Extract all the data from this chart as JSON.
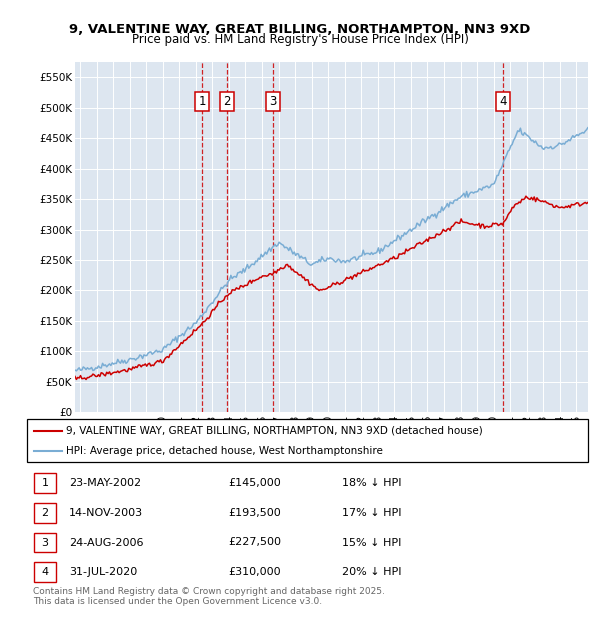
{
  "title_line1": "9, VALENTINE WAY, GREAT BILLING, NORTHAMPTON, NN3 9XD",
  "title_line2": "Price paid vs. HM Land Registry's House Price Index (HPI)",
  "legend_label_red": "9, VALENTINE WAY, GREAT BILLING, NORTHAMPTON, NN3 9XD (detached house)",
  "legend_label_blue": "HPI: Average price, detached house, West Northamptonshire",
  "footer": "Contains HM Land Registry data © Crown copyright and database right 2025.\nThis data is licensed under the Open Government Licence v3.0.",
  "transactions": [
    {
      "num": 1,
      "date": "23-MAY-2002",
      "price": "£145,000",
      "pct": "18% ↓ HPI",
      "year": 2002.38
    },
    {
      "num": 2,
      "date": "14-NOV-2003",
      "price": "£193,500",
      "pct": "17% ↓ HPI",
      "year": 2003.87
    },
    {
      "num": 3,
      "date": "24-AUG-2006",
      "price": "£227,500",
      "pct": "15% ↓ HPI",
      "year": 2006.64
    },
    {
      "num": 4,
      "date": "31-JUL-2020",
      "price": "£310,000",
      "pct": "20% ↓ HPI",
      "year": 2020.58
    }
  ],
  "transaction_prices": [
    145000,
    193500,
    227500,
    310000
  ],
  "ylim": [
    0,
    575000
  ],
  "yticks": [
    0,
    50000,
    100000,
    150000,
    200000,
    250000,
    300000,
    350000,
    400000,
    450000,
    500000,
    550000
  ],
  "ytick_labels": [
    "£0",
    "£50K",
    "£100K",
    "£150K",
    "£200K",
    "£250K",
    "£300K",
    "£350K",
    "£400K",
    "£450K",
    "£500K",
    "£550K"
  ],
  "xlim_start": 1994.7,
  "xlim_end": 2025.7,
  "background_color": "#dde6f0",
  "plot_bg_color": "#dde6f0",
  "red_color": "#cc0000",
  "blue_color": "#7aadd4",
  "grid_color": "#ffffff",
  "title_fontsize": 9.5,
  "subtitle_fontsize": 8.5,
  "tick_fontsize": 7.5,
  "legend_fontsize": 7.5,
  "table_fontsize": 8.0,
  "footer_fontsize": 6.5
}
